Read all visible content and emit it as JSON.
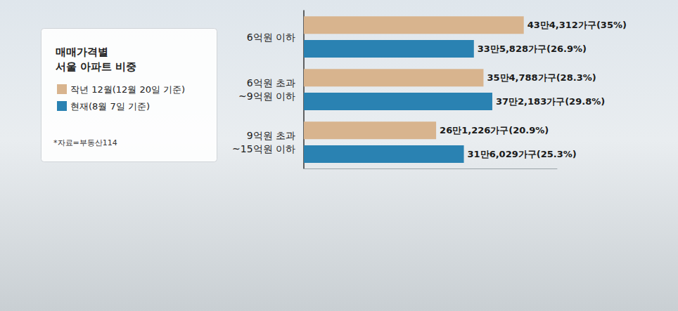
{
  "chart_data": {
    "type": "bar",
    "orientation": "horizontal",
    "title": "매매가격별 서울 아파트 비중",
    "annotations": [
      "*자료=부동산114"
    ],
    "categories": [
      "6억원 이하",
      "6억원 초과~9억원 이하",
      "9억원 초과~15억원 이하"
    ],
    "series": [
      {
        "name": "작년 12월(12월 20일 기준)",
        "color": "#d8b48e",
        "values": [
          434312,
          354788,
          261226
        ],
        "value_labels": [
          "43만4,312가구(35%)",
          "35만4,788가구(28.3%)",
          "26만1,226가구(20.9%)"
        ]
      },
      {
        "name": "현재(8월 7일 기준)",
        "color": "#2a82b2",
        "values": [
          335828,
          372183,
          316029
        ],
        "value_labels": [
          "33만5,828가구(26.9%)",
          "37만2,183가구(29.8%)",
          "31만6,029가구(25.3%)"
        ]
      }
    ],
    "xlim": [
      0,
      500000
    ],
    "data_labels": true,
    "tick_labels": "y",
    "legend": "left",
    "grid": false
  }
}
